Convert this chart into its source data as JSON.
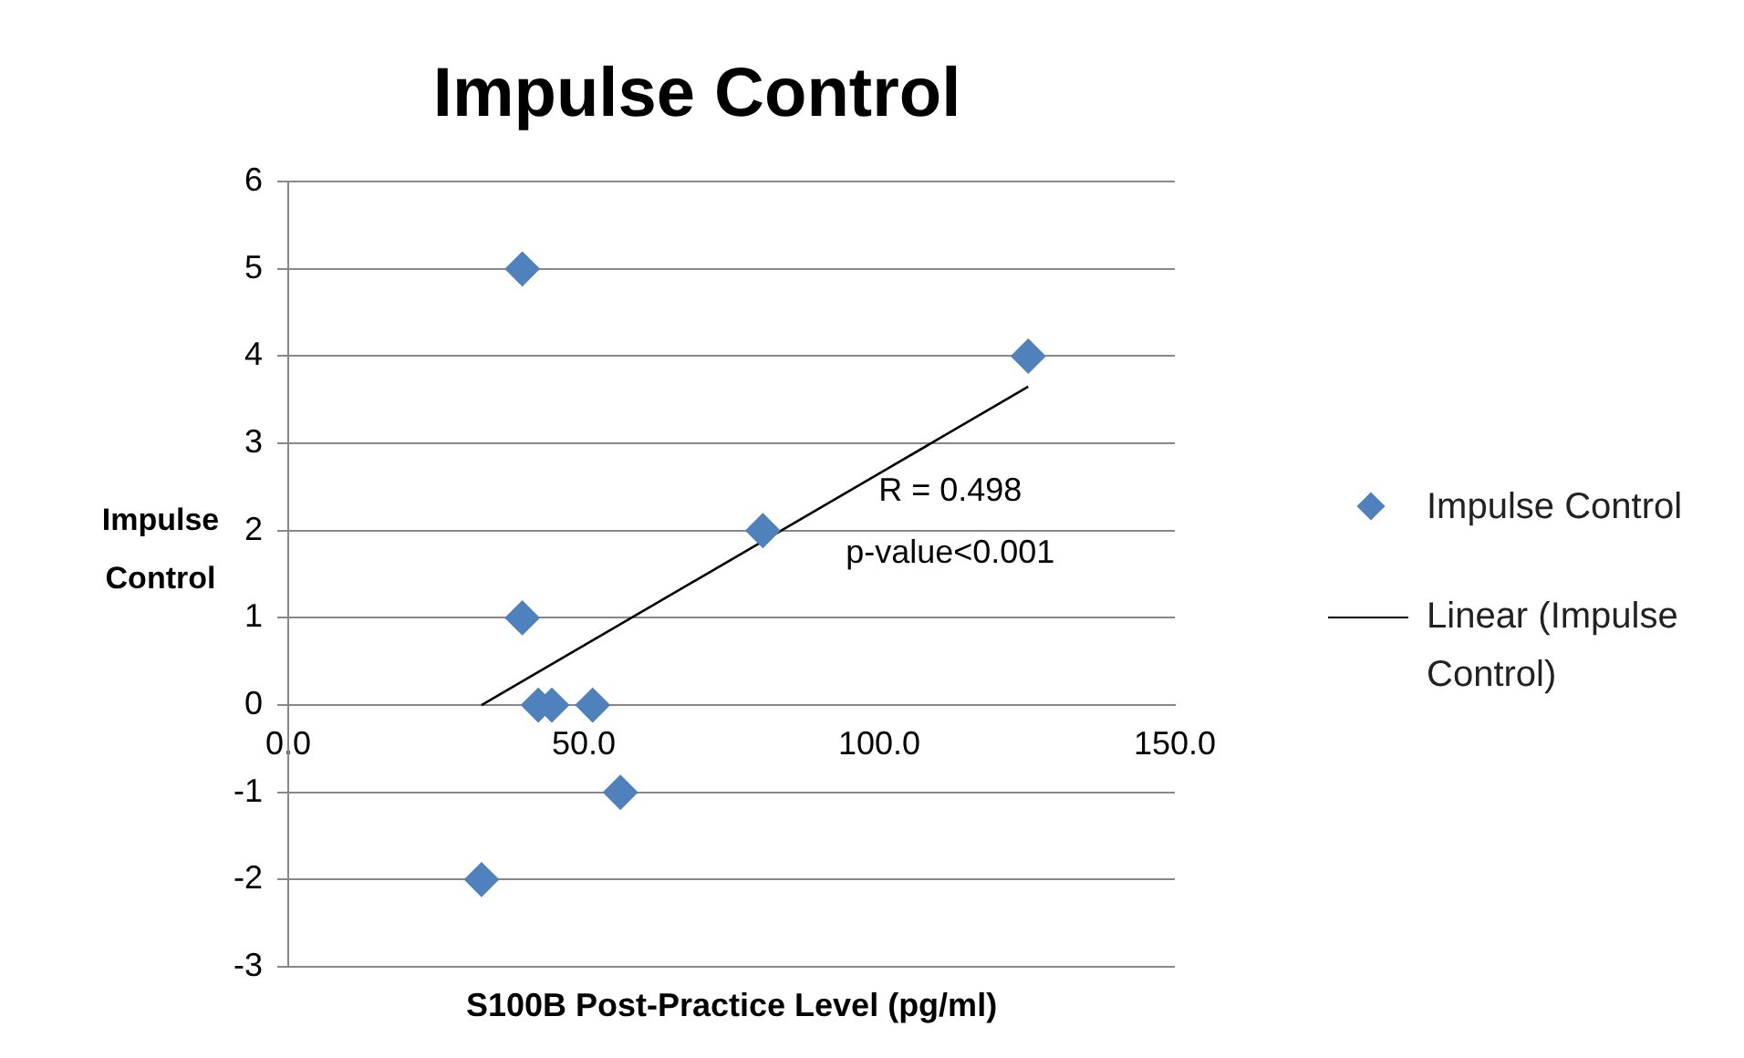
{
  "chart_data": {
    "type": "scatter",
    "title": "Impulse Control",
    "xlabel": "S100B Post-Practice Level (pg/ml)",
    "ylabel": "Impulse Control",
    "series": [
      {
        "name": "Impulse Control",
        "marker": "diamond",
        "color": "#4f81bd",
        "x": [
          39.6,
          125.2,
          80.3,
          39.6,
          42.3,
          44.6,
          51.5,
          56.2,
          32.7
        ],
        "values": [
          5,
          4,
          2,
          1,
          0,
          0,
          0,
          -1,
          -2
        ]
      },
      {
        "name": "Linear (Impulse Control)",
        "type": "line",
        "color": "#000000",
        "x": [
          32.7,
          125.2
        ],
        "values": [
          0,
          3.65
        ]
      }
    ],
    "xlim": [
      0,
      150
    ],
    "xticks": [
      {
        "value": 0,
        "label": "0.0"
      },
      {
        "value": 50,
        "label": "50.0"
      },
      {
        "value": 100,
        "label": "100.0"
      },
      {
        "value": 150,
        "label": "150.0"
      }
    ],
    "ylim": [
      -3,
      6
    ],
    "yticks": [
      -3,
      -2,
      -1,
      0,
      1,
      2,
      3,
      4,
      5,
      6
    ],
    "grid": "y",
    "legend": "right",
    "annotations": [
      "R = 0.498",
      "p-value<0.001"
    ]
  }
}
